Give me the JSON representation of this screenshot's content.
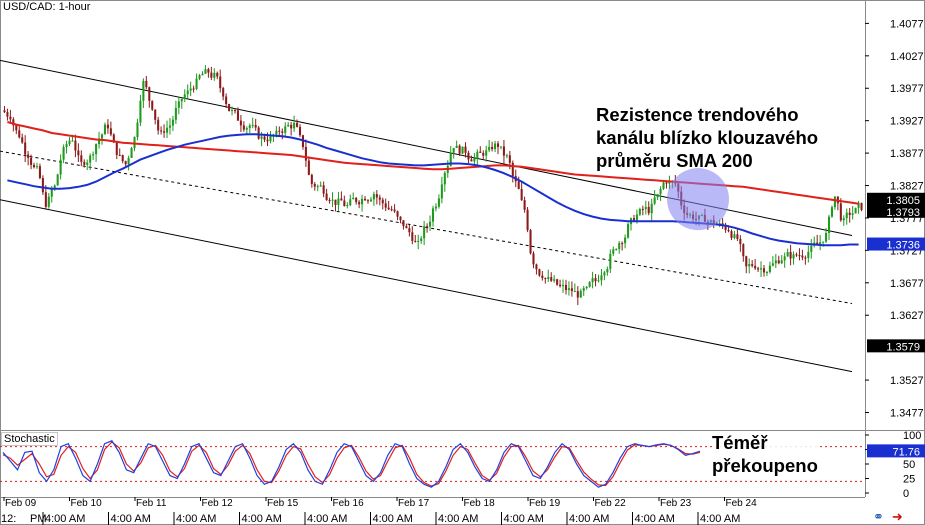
{
  "pair_label": "USD/CAD: 1-hour",
  "indicator_label": "Stochastic",
  "annotations": {
    "main": "Rezistence trendového\nkanálu blízko klouzavého\nprůměru SMA 200",
    "stochastic": "Téměř\npřekoupeno"
  },
  "colors": {
    "up_candle": "#1e9a1e",
    "down_candle": "#8b1a1a",
    "sma_red": "#e0201a",
    "sma_blue": "#1a2fd0",
    "channel": "#000000",
    "highlight": "#8080f0",
    "stoch_k": "#2040e0",
    "stoch_d": "#e02020",
    "label_dark": "#000000",
    "label_blue": "#1a2fd0"
  },
  "icons": [
    "link-icon",
    "arrow-icon"
  ],
  "chart_data": [
    {
      "type": "candlestick",
      "title": "USD/CAD: 1-hour",
      "ylim": [
        1.345,
        1.411
      ],
      "y_ticks": [
        "1.4077",
        "1.4027",
        "1.3977",
        "1.3927",
        "1.3877",
        "1.3827",
        "1.3777",
        "1.3727",
        "1.3677",
        "1.3627",
        "1.3527",
        "1.3477"
      ],
      "price_labels": [
        {
          "text": "1.3805",
          "value": 1.3805,
          "style": "dark"
        },
        {
          "text": "1.3793",
          "value": 1.3793,
          "style": "dark"
        },
        {
          "text": "1.3736",
          "value": 1.3736,
          "style": "blue"
        },
        {
          "text": "1.3579",
          "value": 1.3579,
          "style": "dark"
        }
      ],
      "x_dates": [
        "Feb 09",
        "Feb 10",
        "Feb 11",
        "Feb 12",
        "Feb 15",
        "Feb 16",
        "Feb 17",
        "Feb 18",
        "Feb 19",
        "Feb 22",
        "Feb 23",
        "Feb 24"
      ],
      "x_times": [
        "12:",
        "PM",
        "4:00 AM",
        "4:00 AM",
        "4:00 AM",
        "4:00 AM",
        "4:00 AM",
        "4:00 AM",
        "4:00 AM",
        "4:00 AM",
        "4:00 AM",
        "4:00 AM",
        "4:00 AM"
      ],
      "closes": [
        1.3935,
        1.3905,
        1.3875,
        1.385,
        1.38,
        1.3825,
        1.388,
        1.39,
        1.386,
        1.387,
        1.39,
        1.392,
        1.388,
        1.386,
        1.39,
        1.3985,
        1.395,
        1.3905,
        1.392,
        1.395,
        1.397,
        1.3985,
        1.4,
        1.3995,
        1.397,
        1.394,
        1.3925,
        1.392,
        1.3905,
        1.39,
        1.3905,
        1.3915,
        1.392,
        1.389,
        1.383,
        1.3825,
        1.381,
        1.38,
        1.3795,
        1.3805,
        1.381,
        1.3815,
        1.38,
        1.379,
        1.377,
        1.3755,
        1.3735,
        1.3765,
        1.38,
        1.385,
        1.389,
        1.388,
        1.387,
        1.3875,
        1.388,
        1.389,
        1.387,
        1.383,
        1.379,
        1.371,
        1.369,
        1.368,
        1.367,
        1.3665,
        1.366,
        1.3665,
        1.368,
        1.37,
        1.3725,
        1.3745,
        1.377,
        1.3785,
        1.379,
        1.381,
        1.3835,
        1.383,
        1.379,
        1.378,
        1.3775,
        1.377,
        1.3765,
        1.376,
        1.3745,
        1.37,
        1.3705,
        1.37,
        1.3705,
        1.3715,
        1.372,
        1.372,
        1.3725,
        1.3735,
        1.375,
        1.381,
        1.377,
        1.3785,
        1.3795
      ],
      "sma_red": [
        1.3925,
        1.3921,
        1.3918,
        1.3915,
        1.3912,
        1.3908,
        1.3906,
        1.3904,
        1.3902,
        1.39,
        1.3898,
        1.3897,
        1.3895,
        1.3893,
        1.3892,
        1.3891,
        1.389,
        1.3889,
        1.3888,
        1.3887,
        1.3886,
        1.3885,
        1.3884,
        1.3883,
        1.3882,
        1.3881,
        1.388,
        1.3879,
        1.3878,
        1.3877,
        1.3876,
        1.3875,
        1.3874,
        1.3872,
        1.387,
        1.3868,
        1.3866,
        1.3864,
        1.3862,
        1.3861,
        1.386,
        1.3859,
        1.3858,
        1.3857,
        1.3856,
        1.3855,
        1.3854,
        1.3853,
        1.3852,
        1.3852,
        1.3853,
        1.3854,
        1.3855,
        1.3856,
        1.3857,
        1.3858,
        1.3858,
        1.3857,
        1.3856,
        1.3854,
        1.3852,
        1.385,
        1.3848,
        1.3846,
        1.3844,
        1.3843,
        1.3842,
        1.3841,
        1.384,
        1.3839,
        1.3838,
        1.3837,
        1.3836,
        1.3835,
        1.3834,
        1.3833,
        1.3832,
        1.3831,
        1.383,
        1.3829,
        1.3828,
        1.3827,
        1.3826,
        1.3825,
        1.3823,
        1.3821,
        1.3819,
        1.3817,
        1.3815,
        1.3813,
        1.3811,
        1.3809,
        1.3807,
        1.3805,
        1.3803,
        1.3801,
        1.3799
      ],
      "sma_blue": [
        1.3835,
        1.3832,
        1.3829,
        1.3826,
        1.3824,
        1.3822,
        1.3822,
        1.3823,
        1.3825,
        1.3828,
        1.3833,
        1.384,
        1.3847,
        1.3853,
        1.386,
        1.3867,
        1.3872,
        1.3877,
        1.3882,
        1.3886,
        1.389,
        1.3893,
        1.3896,
        1.3899,
        1.3902,
        1.3904,
        1.3905,
        1.3906,
        1.3906,
        1.3905,
        1.3904,
        1.3903,
        1.3901,
        1.3898,
        1.3894,
        1.389,
        1.3885,
        1.3881,
        1.3877,
        1.3873,
        1.3869,
        1.3866,
        1.3863,
        1.3861,
        1.386,
        1.3859,
        1.3858,
        1.3858,
        1.3859,
        1.386,
        1.3861,
        1.3861,
        1.386,
        1.3858,
        1.3855,
        1.3851,
        1.3846,
        1.384,
        1.3833,
        1.3825,
        1.3817,
        1.3809,
        1.3801,
        1.3794,
        1.3788,
        1.3783,
        1.3779,
        1.3776,
        1.3774,
        1.3773,
        1.3772,
        1.3772,
        1.3772,
        1.3772,
        1.3772,
        1.3772,
        1.3771,
        1.377,
        1.3769,
        1.3768,
        1.3767,
        1.3765,
        1.3762,
        1.3758,
        1.3753,
        1.3749,
        1.3745,
        1.3742,
        1.374,
        1.3738,
        1.3737,
        1.3736,
        1.3735,
        1.3735,
        1.3735,
        1.3736,
        1.3736
      ],
      "channel_lines": [
        {
          "name": "upper",
          "start": 1.402,
          "end": 1.375,
          "style": "solid"
        },
        {
          "name": "middle",
          "start": 1.388,
          "end": 1.3645,
          "style": "dotted"
        },
        {
          "name": "lower",
          "start": 1.3805,
          "end": 1.354,
          "style": "solid"
        }
      ]
    },
    {
      "type": "line",
      "title": "Stochastic",
      "ylim": [
        0,
        100
      ],
      "y_ticks": [
        "100",
        "75",
        "50",
        "25",
        "0"
      ],
      "levels": [
        80,
        20
      ],
      "current_label": "71.76",
      "k": [
        70,
        55,
        40,
        70,
        72,
        35,
        20,
        40,
        80,
        85,
        60,
        30,
        20,
        50,
        85,
        90,
        70,
        40,
        35,
        60,
        85,
        80,
        55,
        30,
        25,
        50,
        80,
        85,
        60,
        35,
        30,
        55,
        80,
        85,
        60,
        30,
        15,
        20,
        45,
        75,
        85,
        70,
        40,
        20,
        15,
        40,
        70,
        85,
        80,
        55,
        30,
        20,
        35,
        65,
        85,
        80,
        50,
        25,
        15,
        10,
        20,
        45,
        75,
        85,
        70,
        45,
        25,
        20,
        40,
        70,
        85,
        80,
        55,
        30,
        25,
        45,
        70,
        85,
        75,
        50,
        30,
        20,
        10,
        15,
        35,
        60,
        80,
        85,
        82,
        80,
        83,
        85,
        82,
        75,
        65,
        68,
        72
      ],
      "d": [
        66,
        60,
        48,
        58,
        68,
        50,
        28,
        32,
        65,
        80,
        70,
        42,
        25,
        40,
        75,
        88,
        78,
        50,
        38,
        52,
        78,
        82,
        65,
        38,
        28,
        42,
        72,
        82,
        70,
        42,
        32,
        48,
        72,
        82,
        68,
        40,
        20,
        18,
        38,
        65,
        80,
        76,
        50,
        28,
        18,
        32,
        60,
        78,
        82,
        62,
        38,
        24,
        30,
        55,
        78,
        82,
        60,
        32,
        18,
        12,
        16,
        38,
        65,
        80,
        75,
        52,
        30,
        22,
        34,
        62,
        80,
        82,
        62,
        38,
        28,
        40,
        62,
        80,
        78,
        56,
        36,
        24,
        14,
        13,
        28,
        52,
        74,
        83,
        82,
        80,
        82,
        84,
        82,
        76,
        68,
        67,
        70
      ]
    }
  ]
}
